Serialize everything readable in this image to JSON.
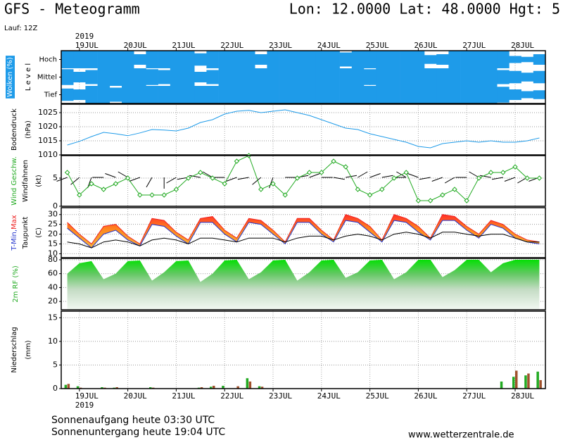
{
  "header": {
    "title": "GFS - Meteogramm",
    "location": "Lon: 12.0000 Lat: 48.0000 Hgt: 5",
    "run": "Lauf: 12Z"
  },
  "chart_data": [
    {
      "type": "cloud",
      "ylabel": "Wolken (%)",
      "level_label": "L e v e l",
      "year": "2019",
      "categories": [
        null,
        "19JUL",
        null,
        null,
        null,
        "20JUL",
        null,
        null,
        null,
        "21JUL",
        null,
        null,
        null,
        "22JUL",
        null,
        null,
        null,
        "23JUL",
        null,
        null,
        null,
        "24JUL",
        null,
        null,
        null,
        "25JUL",
        null,
        null,
        null,
        "26JUL",
        null,
        null,
        null,
        "27JUL",
        null,
        null,
        null,
        "28JUL",
        null,
        null
      ],
      "series": [
        {
          "name": "Hoch",
          "color": "#1e9be9",
          "values": [
            100,
            100,
            100,
            100,
            100,
            100,
            60,
            100,
            100,
            100,
            100,
            70,
            100,
            100,
            100,
            100,
            60,
            100,
            100,
            100,
            100,
            100,
            100,
            80,
            100,
            100,
            100,
            100,
            100,
            100,
            50,
            60,
            100,
            100,
            100,
            100,
            100,
            40,
            30,
            60
          ]
        },
        {
          "name": "Mittel",
          "color": "#1e9be9",
          "values": [
            90,
            60,
            80,
            100,
            100,
            100,
            100,
            90,
            80,
            100,
            100,
            60,
            80,
            100,
            100,
            100,
            100,
            100,
            100,
            100,
            100,
            100,
            100,
            100,
            100,
            90,
            100,
            100,
            100,
            100,
            100,
            100,
            100,
            100,
            100,
            100,
            80,
            70,
            50,
            70
          ]
        },
        {
          "name": "Tief",
          "color": "#1e9be9",
          "values": [
            70,
            60,
            100,
            100,
            80,
            100,
            100,
            100,
            100,
            100,
            100,
            100,
            100,
            100,
            100,
            100,
            100,
            100,
            100,
            100,
            100,
            100,
            100,
            100,
            100,
            100,
            100,
            100,
            100,
            100,
            100,
            100,
            100,
            100,
            100,
            100,
            90,
            60,
            40,
            50
          ]
        }
      ]
    },
    {
      "type": "line",
      "ylabel": "Bodendruck",
      "unit": "(hPa)",
      "ylim": [
        1010,
        1028
      ],
      "yticks": [
        1010,
        1015,
        1020,
        1025
      ],
      "grid": true,
      "series": [
        {
          "color": "#1e9be9",
          "values": [
            1013.5,
            1014.8,
            1016.5,
            1018,
            1017.5,
            1016.8,
            1017.8,
            1019,
            1018.8,
            1018.5,
            1019.5,
            1021.5,
            1022.5,
            1024.5,
            1025.5,
            1025.8,
            1025,
            1025.5,
            1026,
            1025,
            1024,
            1022.5,
            1021,
            1019.5,
            1019,
            1017.5,
            1016.5,
            1015.5,
            1014.5,
            1013,
            1012.5,
            1014,
            1014.5,
            1015,
            1014.5,
            1015,
            1014.5,
            1014.5,
            1015,
            1016
          ]
        }
      ]
    },
    {
      "type": "wind",
      "unit": "(kt)",
      "ylim": [
        0,
        9
      ],
      "yticks": [
        0,
        5
      ],
      "grid": true,
      "series": [
        {
          "name": "Wind Geschw.",
          "color": "#22aa22",
          "values": [
            6,
            2,
            4,
            3,
            4,
            5,
            2,
            2,
            2,
            3,
            5,
            6,
            5,
            4,
            8,
            9,
            3,
            4,
            2,
            5,
            6,
            6,
            8,
            7,
            3,
            2,
            3,
            5,
            6,
            1,
            1,
            2,
            3,
            1,
            5,
            6,
            6,
            7,
            5,
            5
          ]
        },
        {
          "name": "Windfahnen",
          "color": "#000000",
          "values": [
            250,
            230,
            200,
            270,
            290,
            300,
            250,
            210,
            180,
            240,
            260,
            280,
            300,
            270,
            250,
            260,
            230,
            200,
            90,
            80,
            70,
            90,
            100,
            80,
            60,
            70,
            80,
            90,
            300,
            290,
            260,
            250,
            240,
            270,
            300,
            280,
            260,
            250,
            240,
            250
          ]
        }
      ]
    },
    {
      "type": "temperature",
      "unit": "(C)",
      "ylim": [
        8,
        33.5
      ],
      "yticks": [
        10,
        15,
        20,
        25,
        30
      ],
      "grid": true,
      "series": [
        {
          "name": "T-Min,",
          "color": "#2233cc",
          "values": [
            23,
            18,
            13,
            20,
            22,
            17,
            14,
            25,
            24,
            19,
            15,
            26,
            26,
            20,
            16,
            26,
            25,
            20,
            15,
            26,
            26,
            20,
            16,
            27,
            26,
            21,
            16,
            27,
            26,
            21,
            17,
            27,
            27,
            22,
            18,
            25,
            23,
            18,
            16,
            15
          ]
        },
        {
          "name": "Max",
          "color": "#ee2222",
          "values": [
            26,
            20,
            15,
            24,
            25,
            19,
            15,
            28,
            27,
            21,
            17,
            28,
            29,
            22,
            18,
            28,
            27,
            22,
            16,
            28,
            28,
            22,
            17,
            30,
            28,
            24,
            17,
            30,
            28,
            24,
            18,
            30,
            29,
            24,
            20,
            27,
            25,
            20,
            17,
            16
          ]
        },
        {
          "name": "Taupunkt",
          "color": "#000000",
          "values": [
            16,
            15,
            13,
            16,
            17,
            16,
            14,
            17,
            18,
            17,
            15,
            18,
            18,
            17,
            16,
            18,
            18,
            18,
            16,
            18,
            19,
            19,
            17,
            19,
            20,
            19,
            17,
            20,
            21,
            20,
            18,
            21,
            21,
            20,
            19,
            20,
            20,
            18,
            16,
            16
          ]
        }
      ]
    },
    {
      "type": "area",
      "ylabel": "2m RF (%)",
      "ylim": [
        8,
        82
      ],
      "yticks": [
        20,
        40,
        60,
        80
      ],
      "grid": true,
      "series": [
        {
          "color": "#00cc00",
          "values": [
            60,
            75,
            78,
            52,
            60,
            78,
            79,
            50,
            62,
            78,
            79,
            48,
            60,
            79,
            80,
            52,
            62,
            79,
            80,
            50,
            62,
            79,
            80,
            54,
            62,
            79,
            80,
            52,
            62,
            80,
            80,
            55,
            65,
            80,
            80,
            62,
            75,
            80,
            80,
            80
          ]
        }
      ]
    },
    {
      "type": "bar",
      "ylabel": "Niederschlag",
      "unit": "(mm)",
      "ylim": [
        0,
        16.4
      ],
      "yticks": [
        0,
        5,
        10,
        15
      ],
      "grid": true,
      "series": [
        {
          "color": "#22aa22",
          "values": [
            0.8,
            0.5,
            0,
            0.3,
            0.2,
            0,
            0,
            0.3,
            0,
            0,
            0,
            0.2,
            0.4,
            0.6,
            0,
            2.2,
            0.5,
            0,
            0,
            0,
            0,
            0,
            0,
            0,
            0,
            0,
            0,
            0,
            0,
            0,
            0,
            0,
            0,
            0,
            0,
            0,
            1.5,
            2.5,
            2.8,
            3.6
          ]
        },
        {
          "color": "#a0522d",
          "values": [
            1.0,
            0.2,
            0,
            0.2,
            0.3,
            0,
            0,
            0.2,
            0,
            0,
            0,
            0.3,
            0.6,
            0,
            0.5,
            1.5,
            0.4,
            0,
            0,
            0,
            0,
            0,
            0,
            0,
            0,
            0,
            0,
            0,
            0,
            0,
            0,
            0,
            0,
            0,
            0,
            0,
            0,
            3.8,
            3.2,
            1.8
          ]
        }
      ]
    }
  ],
  "footer": {
    "sunrise": "Sonnenaufgang heute 03:30 UTC",
    "sunset": "Sonnenuntergang heute 19:04 UTC",
    "site": "www.wetterzentrale.de"
  }
}
